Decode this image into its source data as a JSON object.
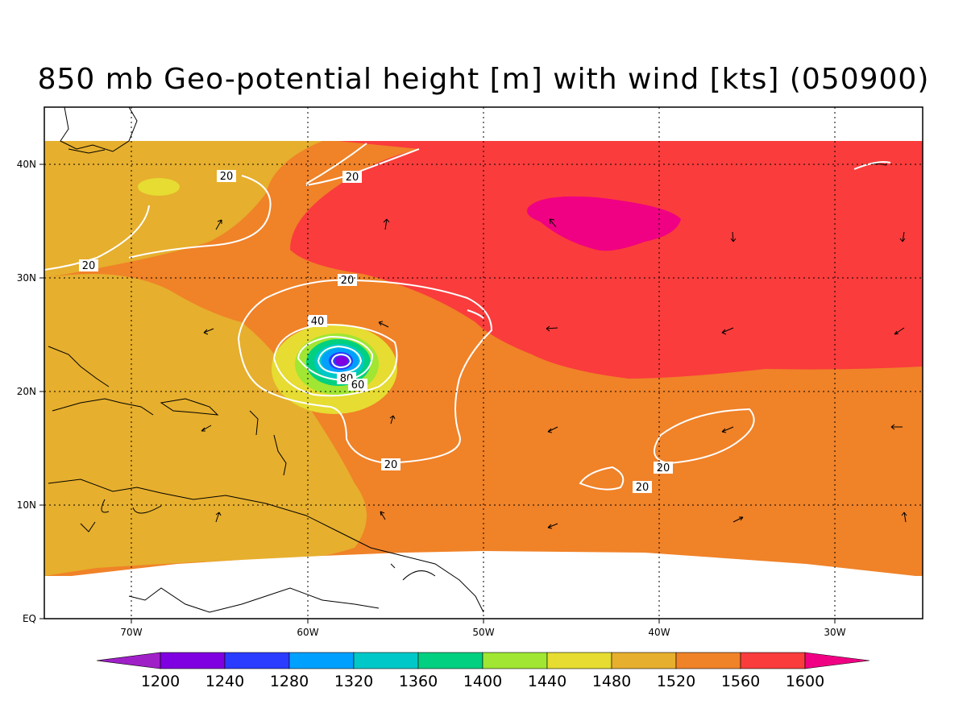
{
  "title": "850 mb Geo-potential height [m] with wind [kts] (050900)",
  "axes": {
    "lon_labels": [
      "70W",
      "60W",
      "50W",
      "40W",
      "30W"
    ],
    "lat_labels": [
      "EQ",
      "10N",
      "20N",
      "30N",
      "40N"
    ]
  },
  "contour_labels": [
    "20",
    "20",
    "20",
    "20",
    "20",
    "20",
    "20",
    "40",
    "80",
    "60"
  ],
  "colorbar": {
    "labels": [
      "1200",
      "1240",
      "1280",
      "1320",
      "1360",
      "1400",
      "1440",
      "1480",
      "1520",
      "1560",
      "1600"
    ],
    "colors": [
      "#a020c8",
      "#7f00e0",
      "#2a3cff",
      "#00a0ff",
      "#00c8c8",
      "#00d080",
      "#a0e632",
      "#e6dc32",
      "#e6af2d",
      "#f08228",
      "#fa3c3c",
      "#f00082"
    ]
  },
  "field_colors": {
    "h_1520_1560": "#e6af2d",
    "h_1560_1600": "#f08228",
    "h_1600_plus": "#fa3c3c",
    "h_high_core": "#f00082",
    "h_1480_1520": "#e6dc32",
    "h_1440_1480": "#a0e632",
    "h_1400_1440": "#00d080",
    "h_1360_1400": "#00c8c8",
    "h_1320_1360": "#00a0ff",
    "h_1280_1320": "#2a3cff",
    "h_1240_1280": "#7f00e0"
  }
}
